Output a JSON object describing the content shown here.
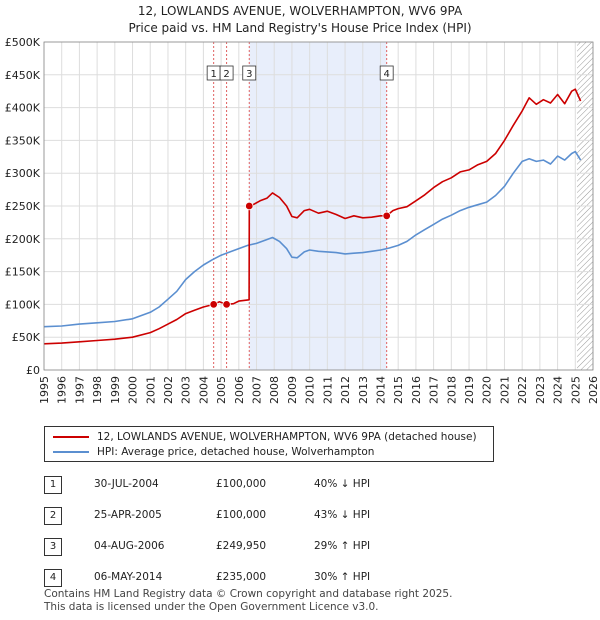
{
  "chart_data": {
    "type": "line",
    "title": "12, LOWLANDS AVENUE, WOLVERHAMPTON, WV6 9PA",
    "subtitle": "Price paid vs. HM Land Registry's House Price Index (HPI)",
    "xlim": [
      1995,
      2026
    ],
    "ylim": [
      0,
      500000
    ],
    "x_ticks": [
      "1995",
      "1996",
      "1997",
      "1998",
      "1999",
      "2000",
      "2001",
      "2002",
      "2003",
      "2004",
      "2005",
      "2006",
      "2007",
      "2008",
      "2009",
      "2010",
      "2011",
      "2012",
      "2013",
      "2014",
      "2015",
      "2016",
      "2017",
      "2018",
      "2019",
      "2020",
      "2021",
      "2022",
      "2023",
      "2024",
      "2025",
      "2026"
    ],
    "y_ticks": [
      {
        "value": 0,
        "label": "£0"
      },
      {
        "value": 50000,
        "label": "£50K"
      },
      {
        "value": 100000,
        "label": "£100K"
      },
      {
        "value": 150000,
        "label": "£150K"
      },
      {
        "value": 200000,
        "label": "£200K"
      },
      {
        "value": 250000,
        "label": "£250K"
      },
      {
        "value": 300000,
        "label": "£300K"
      },
      {
        "value": 350000,
        "label": "£350K"
      },
      {
        "value": 400000,
        "label": "£400K"
      },
      {
        "value": 450000,
        "label": "£450K"
      },
      {
        "value": 500000,
        "label": "£500K"
      }
    ],
    "shaded_period": [
      2006.59,
      2014.35
    ],
    "hatched_from": 2025.1,
    "series": [
      {
        "name": "12, LOWLANDS AVENUE, WOLVERHAMPTON, WV6 9PA (detached house)",
        "color": "#cc0000",
        "x": [
          1995.0,
          1996.0,
          1997.0,
          1998.0,
          1999.0,
          2000.0,
          2001.0,
          2001.5,
          2002.0,
          2002.5,
          2003.0,
          2003.5,
          2004.0,
          2004.58,
          2004.9,
          2005.31,
          2005.7,
          2006.0,
          2006.58,
          2006.59,
          2006.8,
          2007.2,
          2007.6,
          2007.9,
          2008.3,
          2008.7,
          2009.0,
          2009.3,
          2009.7,
          2010.0,
          2010.5,
          2011.0,
          2011.5,
          2012.0,
          2012.5,
          2013.0,
          2013.5,
          2014.0,
          2014.35,
          2014.7,
          2015.0,
          2015.5,
          2016.0,
          2016.5,
          2017.0,
          2017.5,
          2018.0,
          2018.5,
          2019.0,
          2019.5,
          2020.0,
          2020.5,
          2021.0,
          2021.5,
          2022.0,
          2022.4,
          2022.8,
          2023.2,
          2023.6,
          2024.0,
          2024.4,
          2024.8,
          2025.0,
          2025.3
        ],
        "values": [
          40000,
          41000,
          43000,
          45000,
          47000,
          50000,
          57000,
          63000,
          70000,
          77000,
          86000,
          91000,
          96000,
          100000,
          104000,
          100000,
          101000,
          105000,
          107000,
          249950,
          252000,
          258000,
          262000,
          270000,
          263000,
          250000,
          234000,
          232000,
          243000,
          245000,
          239000,
          242000,
          237000,
          231000,
          235000,
          232000,
          233000,
          235000,
          235000,
          243000,
          246000,
          249000,
          258000,
          267000,
          278000,
          287000,
          293000,
          302000,
          305000,
          313000,
          318000,
          330000,
          350000,
          373000,
          395000,
          415000,
          405000,
          412000,
          407000,
          420000,
          406000,
          425000,
          428000,
          410000
        ]
      },
      {
        "name": "HPI: Average price, detached house, Wolverhampton",
        "color": "#5b8fd0",
        "x": [
          1995.0,
          1996.0,
          1997.0,
          1998.0,
          1999.0,
          2000.0,
          2001.0,
          2001.5,
          2002.0,
          2002.5,
          2003.0,
          2003.5,
          2004.0,
          2004.5,
          2005.0,
          2005.5,
          2006.0,
          2006.5,
          2007.0,
          2007.5,
          2007.9,
          2008.3,
          2008.7,
          2009.0,
          2009.3,
          2009.7,
          2010.0,
          2010.5,
          2011.0,
          2011.5,
          2012.0,
          2012.5,
          2013.0,
          2013.5,
          2014.0,
          2014.5,
          2015.0,
          2015.5,
          2016.0,
          2016.5,
          2017.0,
          2017.5,
          2018.0,
          2018.5,
          2019.0,
          2019.5,
          2020.0,
          2020.5,
          2021.0,
          2021.5,
          2022.0,
          2022.4,
          2022.8,
          2023.2,
          2023.6,
          2024.0,
          2024.4,
          2024.8,
          2025.0,
          2025.3
        ],
        "values": [
          66000,
          67000,
          70000,
          72000,
          74000,
          78000,
          88000,
          96000,
          108000,
          120000,
          138000,
          150000,
          160000,
          168000,
          175000,
          180000,
          185000,
          190000,
          193000,
          198000,
          202000,
          196000,
          185000,
          172000,
          171000,
          180000,
          183000,
          181000,
          180000,
          179000,
          177000,
          178000,
          179000,
          181000,
          183000,
          186000,
          190000,
          196000,
          206000,
          214000,
          222000,
          230000,
          236000,
          243000,
          248000,
          252000,
          256000,
          266000,
          280000,
          300000,
          318000,
          322000,
          318000,
          320000,
          314000,
          326000,
          320000,
          330000,
          333000,
          320000
        ]
      }
    ],
    "sales_markers": [
      {
        "id": "1",
        "x": 2004.58,
        "value": 100000
      },
      {
        "id": "2",
        "x": 2005.31,
        "value": 100000
      },
      {
        "id": "3",
        "x": 2006.59,
        "value": 249950
      },
      {
        "id": "4",
        "x": 2014.35,
        "value": 235000
      }
    ]
  },
  "legend": {
    "items": [
      {
        "label": "12, LOWLANDS AVENUE, WOLVERHAMPTON, WV6 9PA (detached house)",
        "color": "#cc0000"
      },
      {
        "label": "HPI: Average price, detached house, Wolverhampton",
        "color": "#5b8fd0"
      }
    ]
  },
  "sales": [
    {
      "num": "1",
      "date": "30-JUL-2004",
      "price": "£100,000",
      "hpi": "40% ↓ HPI"
    },
    {
      "num": "2",
      "date": "25-APR-2005",
      "price": "£100,000",
      "hpi": "43% ↓ HPI"
    },
    {
      "num": "3",
      "date": "04-AUG-2006",
      "price": "£249,950",
      "hpi": "29% ↑ HPI"
    },
    {
      "num": "4",
      "date": "06-MAY-2014",
      "price": "£235,000",
      "hpi": "30% ↑ HPI"
    }
  ],
  "footer": {
    "line1": "Contains HM Land Registry data © Crown copyright and database right 2025.",
    "line2": "This data is licensed under the Open Government Licence v3.0."
  }
}
